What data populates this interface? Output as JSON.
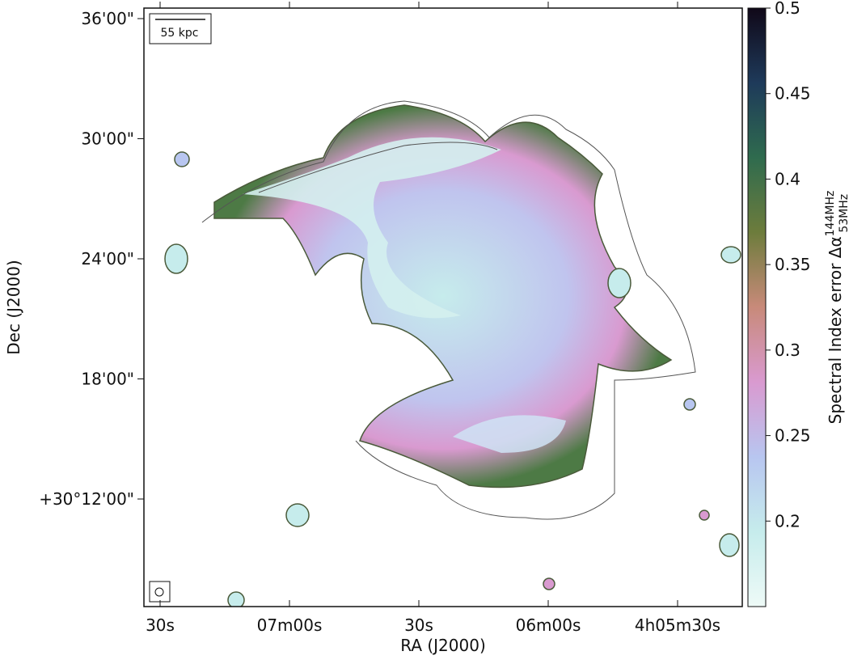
{
  "chart_data": {
    "type": "image",
    "xlabel": "RA (J2000)",
    "ylabel": "Dec (J2000)",
    "xtick_labels": [
      "30s",
      "07m00s",
      "30s",
      "06m00s",
      "4h05m30s"
    ],
    "ytick_labels": [
      "36'00\"",
      "30'00\"",
      "24'00\"",
      "18'00\"",
      "+30°12'00\""
    ],
    "scalebar_label": "55 kpc",
    "colorbar": {
      "label": "Spectral Index error Δα",
      "label_sup": "144MHz",
      "label_sub": "53MHz",
      "clim": [
        0.15,
        0.5
      ],
      "ticks": [
        0.2,
        0.25,
        0.3,
        0.35,
        0.4,
        0.45,
        0.5
      ],
      "colors": [
        "#eefaf7",
        "#c6ecec",
        "#b8c6f0",
        "#d99ad0",
        "#c88a7a",
        "#6d7c3c",
        "#2f6b4e",
        "#1e3a5a",
        "#100818"
      ]
    }
  }
}
